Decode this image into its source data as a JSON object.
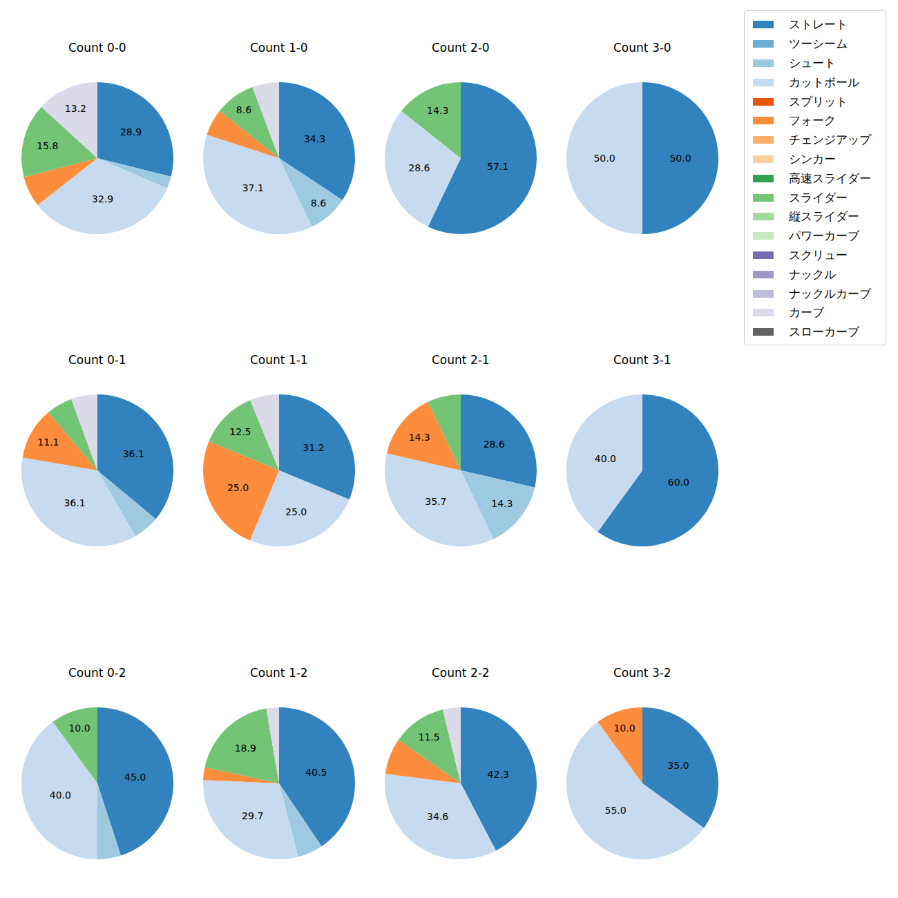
{
  "legend_entries": [
    {
      "name": "ストレート",
      "color": "#3182bd"
    },
    {
      "name": "ツーシーム",
      "color": "#6baed6"
    },
    {
      "name": "シュート",
      "color": "#9ecae1"
    },
    {
      "name": "カットボール",
      "color": "#c6dbef"
    },
    {
      "name": "スプリット",
      "color": "#e6550d"
    },
    {
      "name": "フォーク",
      "color": "#fd8d3c"
    },
    {
      "name": "チェンジアップ",
      "color": "#fdae6b"
    },
    {
      "name": "シンカー",
      "color": "#fdd0a2"
    },
    {
      "name": "高速スライダー",
      "color": "#31a354"
    },
    {
      "name": "スライダー",
      "color": "#74c476"
    },
    {
      "name": "縦スライダー",
      "color": "#a1d99b"
    },
    {
      "name": "パワーカーブ",
      "color": "#c7e9c0"
    },
    {
      "name": "スクリュー",
      "color": "#756bb1"
    },
    {
      "name": "ナックル",
      "color": "#9e9ac8"
    },
    {
      "name": "ナックルカーブ",
      "color": "#bcbddc"
    },
    {
      "name": "カーブ",
      "color": "#dadaeb"
    },
    {
      "name": "スローカーブ",
      "color": "#636363"
    }
  ],
  "chart_data": [
    {
      "type": "pie",
      "title": "Count 0-0",
      "data_labels": true,
      "categories": [
        "ストレート",
        "シュート",
        "カットボール",
        "フォーク",
        "スライダー",
        "カーブ"
      ],
      "values": [
        28.9,
        2.6,
        32.9,
        6.6,
        15.8,
        13.2
      ],
      "value_labels": [
        "28.9",
        null,
        "32.9",
        null,
        "15.8",
        "13.2"
      ],
      "colors": [
        "#3182bd",
        "#9ecae1",
        "#c6dbef",
        "#fd8d3c",
        "#74c476",
        "#dadaeb"
      ]
    },
    {
      "type": "pie",
      "title": "Count 1-0",
      "data_labels": true,
      "categories": [
        "ストレート",
        "シュート",
        "カットボール",
        "フォーク",
        "スライダー",
        "カーブ"
      ],
      "values": [
        34.3,
        8.6,
        37.1,
        5.7,
        8.6,
        5.7
      ],
      "value_labels": [
        "34.3",
        "8.6",
        "37.1",
        null,
        "8.6",
        null
      ],
      "colors": [
        "#3182bd",
        "#9ecae1",
        "#c6dbef",
        "#fd8d3c",
        "#74c476",
        "#dadaeb"
      ]
    },
    {
      "type": "pie",
      "title": "Count 2-0",
      "data_labels": true,
      "categories": [
        "ストレート",
        "カットボール",
        "スライダー"
      ],
      "values": [
        57.1,
        28.6,
        14.3
      ],
      "value_labels": [
        "57.1",
        "28.6",
        "14.3"
      ],
      "colors": [
        "#3182bd",
        "#c6dbef",
        "#74c476"
      ]
    },
    {
      "type": "pie",
      "title": "Count 3-0",
      "data_labels": true,
      "categories": [
        "ストレート",
        "カットボール"
      ],
      "values": [
        50.0,
        50.0
      ],
      "value_labels": [
        "50.0",
        "50.0"
      ],
      "colors": [
        "#3182bd",
        "#c6dbef"
      ]
    },
    {
      "type": "pie",
      "title": "Count 0-1",
      "data_labels": true,
      "categories": [
        "ストレート",
        "シュート",
        "カットボール",
        "フォーク",
        "スライダー",
        "カーブ"
      ],
      "values": [
        36.1,
        5.6,
        36.1,
        11.1,
        5.6,
        5.6
      ],
      "value_labels": [
        "36.1",
        null,
        "36.1",
        "11.1",
        null,
        null
      ],
      "colors": [
        "#3182bd",
        "#9ecae1",
        "#c6dbef",
        "#fd8d3c",
        "#74c476",
        "#dadaeb"
      ]
    },
    {
      "type": "pie",
      "title": "Count 1-1",
      "data_labels": true,
      "categories": [
        "ストレート",
        "カットボール",
        "フォーク",
        "スライダー",
        "カーブ"
      ],
      "values": [
        31.2,
        25.0,
        25.0,
        12.5,
        6.2
      ],
      "value_labels": [
        "31.2",
        "25.0",
        "25.0",
        "12.5",
        null
      ],
      "colors": [
        "#3182bd",
        "#c6dbef",
        "#fd8d3c",
        "#74c476",
        "#dadaeb"
      ]
    },
    {
      "type": "pie",
      "title": "Count 2-1",
      "data_labels": true,
      "categories": [
        "ストレート",
        "シュート",
        "カットボール",
        "フォーク",
        "スライダー"
      ],
      "values": [
        28.6,
        14.3,
        35.7,
        14.3,
        7.1
      ],
      "value_labels": [
        "28.6",
        "14.3",
        "35.7",
        "14.3",
        null
      ],
      "colors": [
        "#3182bd",
        "#9ecae1",
        "#c6dbef",
        "#fd8d3c",
        "#74c476"
      ]
    },
    {
      "type": "pie",
      "title": "Count 3-1",
      "data_labels": true,
      "categories": [
        "ストレート",
        "カットボール"
      ],
      "values": [
        60.0,
        40.0
      ],
      "value_labels": [
        "60.0",
        "40.0"
      ],
      "colors": [
        "#3182bd",
        "#c6dbef"
      ]
    },
    {
      "type": "pie",
      "title": "Count 0-2",
      "data_labels": true,
      "categories": [
        "ストレート",
        "シュート",
        "カットボール",
        "スライダー"
      ],
      "values": [
        45.0,
        5.0,
        40.0,
        10.0
      ],
      "value_labels": [
        "45.0",
        null,
        "40.0",
        "10.0"
      ],
      "colors": [
        "#3182bd",
        "#9ecae1",
        "#c6dbef",
        "#74c476"
      ]
    },
    {
      "type": "pie",
      "title": "Count 1-2",
      "data_labels": true,
      "categories": [
        "ストレート",
        "シュート",
        "カットボール",
        "フォーク",
        "スライダー",
        "カーブ"
      ],
      "values": [
        40.5,
        5.4,
        29.7,
        2.7,
        18.9,
        2.7
      ],
      "value_labels": [
        "40.5",
        null,
        "29.7",
        null,
        "18.9",
        null
      ],
      "colors": [
        "#3182bd",
        "#9ecae1",
        "#c6dbef",
        "#fd8d3c",
        "#74c476",
        "#dadaeb"
      ]
    },
    {
      "type": "pie",
      "title": "Count 2-2",
      "data_labels": true,
      "categories": [
        "ストレート",
        "カットボール",
        "フォーク",
        "スライダー",
        "カーブ"
      ],
      "values": [
        42.3,
        34.6,
        7.7,
        11.5,
        3.8
      ],
      "value_labels": [
        "42.3",
        "34.6",
        null,
        "11.5",
        null
      ],
      "colors": [
        "#3182bd",
        "#c6dbef",
        "#fd8d3c",
        "#74c476",
        "#dadaeb"
      ]
    },
    {
      "type": "pie",
      "title": "Count 3-2",
      "data_labels": true,
      "categories": [
        "ストレート",
        "カットボール",
        "フォーク"
      ],
      "values": [
        35.0,
        55.0,
        10.0
      ],
      "value_labels": [
        "35.0",
        "55.0",
        "10.0"
      ],
      "colors": [
        "#3182bd",
        "#c6dbef",
        "#fd8d3c"
      ]
    }
  ]
}
